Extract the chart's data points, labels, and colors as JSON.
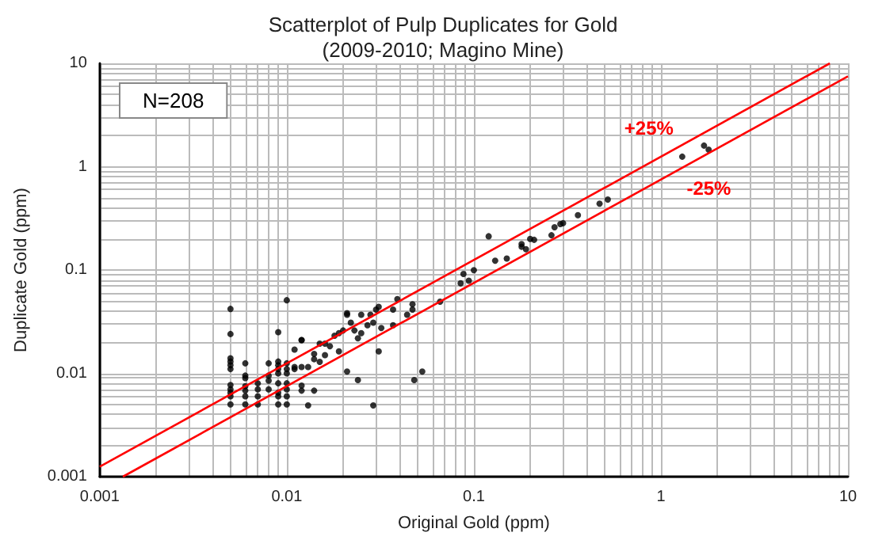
{
  "chart_data": {
    "type": "scatter",
    "title": "Scatterplot of Pulp Duplicates for Gold",
    "subtitle": "(2009-2010; Magino Mine)",
    "xlabel": "Original Gold (ppm)",
    "ylabel": "Duplicate Gold (ppm)",
    "log": "xy",
    "grid": true,
    "xlim": [
      0.001,
      10
    ],
    "ylim": [
      0.001,
      10
    ],
    "xticks": [
      0.001,
      0.01,
      0.1,
      1,
      10
    ],
    "yticks": [
      0.001,
      0.01,
      0.1,
      1,
      10
    ],
    "annotations": [
      "N=208"
    ],
    "series": [
      {
        "color": "#000000",
        "marker": "circle",
        "x": [
          0.005,
          0.005,
          0.005,
          0.005,
          0.005,
          0.005,
          0.005,
          0.005,
          0.005,
          0.005,
          0.005,
          0.006,
          0.006,
          0.006,
          0.006,
          0.006,
          0.006,
          0.006,
          0.007,
          0.007,
          0.007,
          0.007,
          0.008,
          0.008,
          0.008,
          0.008,
          0.009,
          0.009,
          0.009,
          0.009,
          0.009,
          0.009,
          0.009,
          0.009,
          0.009,
          0.01,
          0.01,
          0.01,
          0.01,
          0.01,
          0.01,
          0.01,
          0.01,
          0.011,
          0.012,
          0.011,
          0.012,
          0.011,
          0.012,
          0.013,
          0.012,
          0.012,
          0.014,
          0.013,
          0.014,
          0.015,
          0.016,
          0.014,
          0.015,
          0.016,
          0.017,
          0.018,
          0.019,
          0.019,
          0.02,
          0.021,
          0.021,
          0.022,
          0.023,
          0.024,
          0.025,
          0.025,
          0.027,
          0.028,
          0.029,
          0.03,
          0.031,
          0.032,
          0.037,
          0.037,
          0.039,
          0.044,
          0.047,
          0.047,
          0.021,
          0.024,
          0.029,
          0.031,
          0.048,
          0.053,
          0.066,
          0.085,
          0.088,
          0.094,
          0.1,
          0.12,
          0.13,
          0.15,
          0.18,
          0.18,
          0.19,
          0.2,
          0.21,
          0.26,
          0.27,
          0.29,
          0.3,
          0.36,
          0.47,
          0.52,
          1.3,
          1.7,
          1.8
        ],
        "values": [
          0.042,
          0.024,
          0.014,
          0.013,
          0.012,
          0.011,
          0.0077,
          0.007,
          0.0065,
          0.006,
          0.005,
          0.0125,
          0.0095,
          0.009,
          0.0075,
          0.0068,
          0.006,
          0.005,
          0.008,
          0.007,
          0.006,
          0.005,
          0.0125,
          0.0095,
          0.0085,
          0.007,
          0.025,
          0.013,
          0.012,
          0.011,
          0.01,
          0.008,
          0.0065,
          0.006,
          0.005,
          0.051,
          0.0125,
          0.011,
          0.01,
          0.008,
          0.007,
          0.006,
          0.005,
          0.011,
          0.021,
          0.017,
          0.021,
          0.0115,
          0.0115,
          0.0115,
          0.0076,
          0.0068,
          0.0068,
          0.0049,
          0.0154,
          0.0194,
          0.0194,
          0.0137,
          0.0129,
          0.015,
          0.0183,
          0.0231,
          0.0245,
          0.0163,
          0.026,
          0.0369,
          0.0382,
          0.0309,
          0.026,
          0.0218,
          0.0245,
          0.0369,
          0.0292,
          0.0369,
          0.0309,
          0.0414,
          0.044,
          0.0275,
          0.0414,
          0.0292,
          0.0523,
          0.0369,
          0.0414,
          0.0466,
          0.0104,
          0.0086,
          0.0049,
          0.0163,
          0.0086,
          0.0104,
          0.0493,
          0.0743,
          0.0916,
          0.0787,
          0.0995,
          0.212,
          0.123,
          0.129,
          0.168,
          0.178,
          0.159,
          0.2,
          0.196,
          0.217,
          0.259,
          0.278,
          0.284,
          0.339,
          0.438,
          0.481,
          1.25,
          1.6,
          1.46
        ]
      },
      {
        "type": "line",
        "name": "+25%",
        "color": "#ff0000",
        "marker": "none",
        "x": [
          0.001,
          8
        ],
        "values": [
          0.00125,
          10
        ]
      },
      {
        "type": "line",
        "name": "-25%",
        "color": "#ff0000",
        "marker": "none",
        "x": [
          0.00133,
          10
        ],
        "values": [
          0.001,
          7.5
        ]
      }
    ]
  }
}
